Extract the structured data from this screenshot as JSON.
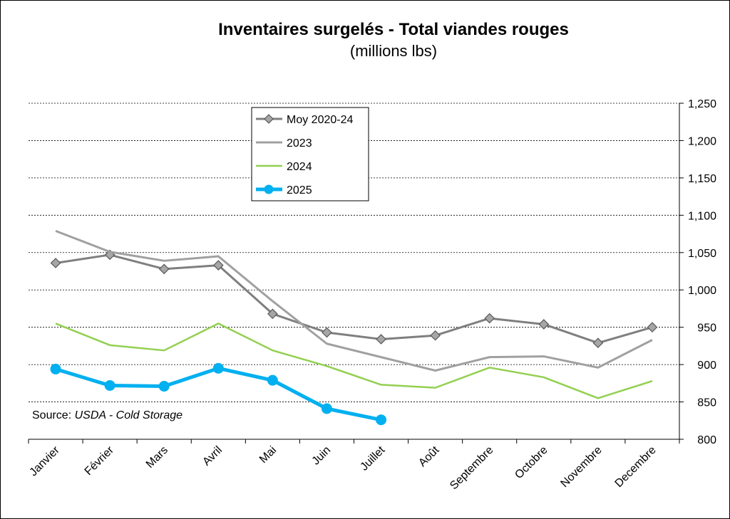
{
  "chart_data": {
    "type": "line",
    "title": "Inventaires surgelés - Total viandes rouges",
    "subtitle": "(millions lbs)",
    "categories": [
      "Janvier",
      "Février",
      "Mars",
      "Avril",
      "Mai",
      "Juin",
      "Juillet",
      "Août",
      "Septembre",
      "Octobre",
      "Novembre",
      "Decembre"
    ],
    "ylim": [
      800,
      1250
    ],
    "yticks": [
      800,
      850,
      900,
      950,
      1000,
      1050,
      1100,
      1150,
      1200,
      1250
    ],
    "ytick_labels": [
      "800",
      "850",
      "900",
      "950",
      "1,000",
      "1,050",
      "1,100",
      "1,150",
      "1,200",
      "1,250"
    ],
    "y_axis_position": "right",
    "grid": "horizontal dashed",
    "legend_position": "top-left",
    "series": [
      {
        "name": "Moy 2020-24",
        "color": "#7f7f7f",
        "marker": "diamond",
        "values": [
          1036,
          1047,
          1028,
          1033,
          968,
          943,
          934,
          939,
          962,
          954,
          929,
          950
        ]
      },
      {
        "name": "2023",
        "color": "#a0a0a0",
        "marker": "none",
        "values": [
          1079,
          1051,
          1039,
          1045,
          985,
          928,
          910,
          892,
          910,
          911,
          896,
          933
        ]
      },
      {
        "name": "2024",
        "color": "#92d050",
        "marker": "none",
        "values": [
          955,
          926,
          919,
          955,
          919,
          898,
          873,
          869,
          896,
          883,
          855,
          878
        ]
      },
      {
        "name": "2025",
        "color": "#00b0f0",
        "marker": "circle",
        "values": [
          894,
          872,
          871,
          895,
          879,
          841,
          826,
          null,
          null,
          null,
          null,
          null
        ]
      }
    ],
    "source_prefix": "Source: ",
    "source_italic": "USDA - Cold Storage"
  }
}
